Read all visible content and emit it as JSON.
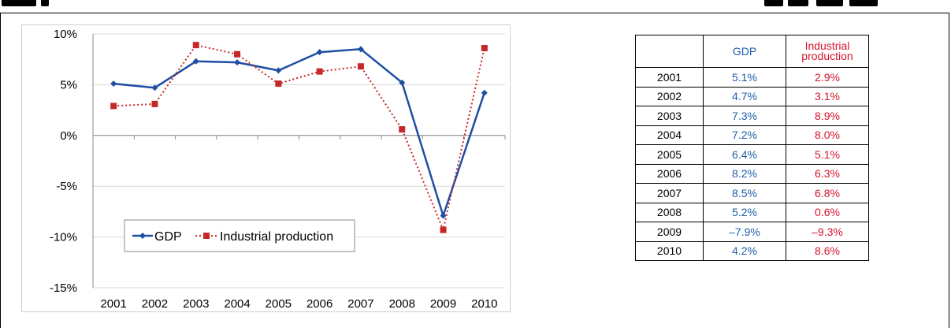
{
  "chart_data": {
    "type": "line",
    "x": [
      "2001",
      "2002",
      "2003",
      "2004",
      "2005",
      "2006",
      "2007",
      "2008",
      "2009",
      "2010"
    ],
    "ylim": [
      -15,
      10
    ],
    "yticks": [
      "10%",
      "5%",
      "0%",
      "-5%",
      "-10%",
      "-15%"
    ],
    "ytick_values": [
      10,
      5,
      0,
      -5,
      -10,
      -15
    ],
    "legend_placement": "bottom-left (inside plot)",
    "grid": "horizontal",
    "series": [
      {
        "name": "GDP",
        "values": [
          5.1,
          4.7,
          7.3,
          7.2,
          6.4,
          8.2,
          8.5,
          5.2,
          -7.9,
          4.2
        ],
        "color": "#1f4fa2",
        "style": "solid",
        "marker": "diamond"
      },
      {
        "name": "Industrial production",
        "values": [
          2.9,
          3.1,
          8.9,
          8.0,
          5.1,
          6.3,
          6.8,
          0.6,
          -9.3,
          8.6
        ],
        "color": "#c62828",
        "style": "dotted",
        "marker": "square"
      }
    ]
  },
  "table": {
    "headers": [
      "",
      "GDP",
      "Industrial production"
    ],
    "rows": [
      [
        "2001",
        "5.1%",
        "2.9%"
      ],
      [
        "2002",
        "4.7%",
        "3.1%"
      ],
      [
        "2003",
        "7.3%",
        "8.9%"
      ],
      [
        "2004",
        "7.2%",
        "8.0%"
      ],
      [
        "2005",
        "6.4%",
        "5.1%"
      ],
      [
        "2006",
        "8.2%",
        "6.3%"
      ],
      [
        "2007",
        "8.5%",
        "6.8%"
      ],
      [
        "2008",
        "5.2%",
        "0.6%"
      ],
      [
        "2009",
        "–7.9%",
        "–9.3%"
      ],
      [
        "2010",
        "4.2%",
        "8.6%"
      ]
    ]
  }
}
